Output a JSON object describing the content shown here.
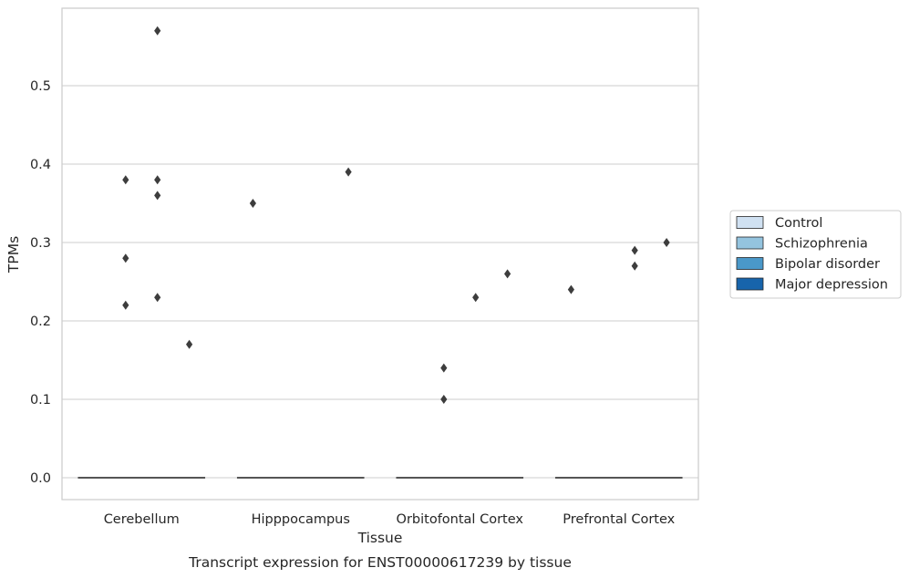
{
  "chart_data": {
    "type": "box",
    "title": "",
    "caption": "Transcript expression for ENST00000617239 by tissue",
    "xlabel": "Tissue",
    "ylabel": "TPMs",
    "ylim": [
      -0.028,
      0.6
    ],
    "yticks": [
      "0.0",
      "0.1",
      "0.2",
      "0.3",
      "0.4",
      "0.5"
    ],
    "grid": "horizontal",
    "legend_position": "right",
    "categories": [
      "Cerebellum",
      "Hipppocampus",
      "Orbitofontal Cortex",
      "Prefrontal Cortex"
    ],
    "series": [
      {
        "name": "Control",
        "color": "#d0e1f2"
      },
      {
        "name": "Schizophrenia",
        "color": "#94c4df"
      },
      {
        "name": "Bipolar disorder",
        "color": "#4a98c9"
      },
      {
        "name": "Major depression",
        "color": "#1764ab"
      }
    ],
    "box_median": 0.0,
    "outliers": [
      {
        "category": "Cerebellum",
        "series": "Schizophrenia",
        "values": [
          0.38,
          0.28,
          0.22
        ]
      },
      {
        "category": "Cerebellum",
        "series": "Bipolar disorder",
        "values": [
          0.57,
          0.38,
          0.36
        ]
      },
      {
        "category": "Cerebellum",
        "series": "Bipolar disorder",
        "values": [
          0.23
        ]
      },
      {
        "category": "Cerebellum",
        "series": "Major depression",
        "values": [
          0.17
        ]
      },
      {
        "category": "Hipppocampus",
        "series": "Control",
        "values": [
          0.35
        ]
      },
      {
        "category": "Hipppocampus",
        "series": "Major depression",
        "values": [
          0.39
        ]
      },
      {
        "category": "Orbitofontal Cortex",
        "series": "Schizophrenia",
        "values": [
          0.14,
          0.1
        ]
      },
      {
        "category": "Orbitofontal Cortex",
        "series": "Bipolar disorder",
        "values": [
          0.23
        ]
      },
      {
        "category": "Orbitofontal Cortex",
        "series": "Major depression",
        "values": [
          0.26
        ]
      },
      {
        "category": "Prefrontal Cortex",
        "series": "Control",
        "values": [
          0.24
        ]
      },
      {
        "category": "Prefrontal Cortex",
        "series": "Bipolar disorder",
        "values": [
          0.29,
          0.27
        ]
      },
      {
        "category": "Prefrontal Cortex",
        "series": "Major depression",
        "values": [
          0.3
        ]
      }
    ]
  }
}
